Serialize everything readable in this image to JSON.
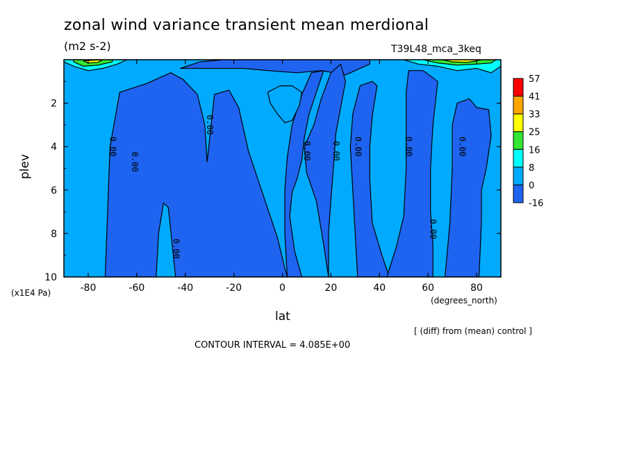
{
  "header": {
    "title": "zonal wind variance transient mean merdional",
    "units": "(m2 s-2)",
    "run": "T39L48_mca_3keq"
  },
  "footer": {
    "diff_note": "[ (diff) from (mean) control ]",
    "contour_interval": "CONTOUR INTERVAL = 4.085E+00"
  },
  "colors": {
    "dark_blue": "#1e64f0",
    "light_blue": "#00aaff",
    "cyan": "#00ffff",
    "green": "#32e632",
    "yellow": "#ffff00",
    "orange": "#ffa500",
    "red": "#ff0000"
  },
  "chart_data": {
    "type": "heatmap",
    "title": "zonal wind variance transient mean merdional",
    "subtitle": "(m2 s-2)",
    "xlabel": "lat",
    "xunits": "(degrees_north)",
    "ylabel": "plev",
    "yunits": "(x1E4 Pa)",
    "xlim": [
      -90,
      90
    ],
    "ylim": [
      10,
      0
    ],
    "x_ticks": [
      -80,
      -60,
      -40,
      -20,
      0,
      20,
      40,
      60,
      80
    ],
    "x_tick_labels": [
      "-80",
      "-60",
      "-40",
      "-20",
      "0",
      "20",
      "40",
      "60",
      "80"
    ],
    "y_ticks": [
      2,
      4,
      6,
      8,
      10
    ],
    "y_tick_labels": [
      "2",
      "4",
      "6",
      "8",
      "10"
    ],
    "colorbar": {
      "levels": [
        "57",
        "41",
        "33",
        "25",
        "16",
        "8",
        "0",
        "-16"
      ],
      "colors": [
        "#ff0000",
        "#ffa500",
        "#ffff00",
        "#32e632",
        "#00ffff",
        "#00aaff",
        "#1e64f0"
      ]
    },
    "contour_labels": [
      {
        "text": "0.00",
        "x": -70,
        "y": 4.0
      },
      {
        "text": "0.00",
        "x": -61,
        "y": 4.7
      },
      {
        "text": "0.00",
        "x": -44,
        "y": 8.7
      },
      {
        "text": "0.00",
        "x": -30,
        "y": 3.0
      },
      {
        "text": "0.00",
        "x": 10,
        "y": 4.2
      },
      {
        "text": "0.00",
        "x": 22,
        "y": 4.2
      },
      {
        "text": "0.00",
        "x": 31,
        "y": 4.0
      },
      {
        "text": "0.00",
        "x": 52,
        "y": 4.0
      },
      {
        "text": "0.00",
        "x": 62,
        "y": 7.8
      },
      {
        "text": "0.00",
        "x": 74,
        "y": 4.0
      }
    ],
    "regions": [
      {
        "name": "negative-sh-tower",
        "color": "#1e64f0",
        "points": [
          [
            -73,
            10
          ],
          [
            -71,
            4
          ],
          [
            -67,
            1.5
          ],
          [
            -56,
            1.1
          ],
          [
            -46,
            0.6
          ],
          [
            -41,
            0.9
          ],
          [
            -35,
            1.6
          ],
          [
            -32,
            3
          ],
          [
            -31,
            4.7
          ],
          [
            -28,
            1.6
          ],
          [
            -22,
            1.4
          ],
          [
            -18,
            2.2
          ],
          [
            -14,
            4.2
          ],
          [
            -8,
            6.2
          ],
          [
            -2,
            8.2
          ],
          [
            1,
            9.6
          ],
          [
            2,
            10
          ],
          [
            -16,
            10
          ],
          [
            -32,
            10
          ],
          [
            -40,
            10
          ],
          [
            -44,
            10
          ],
          [
            -47,
            6.8
          ],
          [
            -49,
            6.6
          ],
          [
            -51,
            8
          ],
          [
            -52,
            10
          ],
          [
            -60,
            10
          ],
          [
            -67,
            10
          ]
        ]
      },
      {
        "name": "negative-top-band",
        "color": "#1e64f0",
        "points": [
          [
            -42,
            0.4
          ],
          [
            -34,
            0.1
          ],
          [
            -24,
            0
          ],
          [
            -8,
            0
          ],
          [
            8,
            0
          ],
          [
            24,
            0
          ],
          [
            36,
            0
          ],
          [
            36,
            0.2
          ],
          [
            26,
            0.7
          ],
          [
            16,
            0.5
          ],
          [
            6,
            0.6
          ],
          [
            -6,
            0.5
          ],
          [
            -16,
            0.4
          ],
          [
            -30,
            0.4
          ]
        ]
      },
      {
        "name": "negative-midlat-nh",
        "color": "#1e64f0",
        "points": [
          [
            19,
            10
          ],
          [
            17,
            8.5
          ],
          [
            14,
            6.5
          ],
          [
            10,
            5.2
          ],
          [
            9,
            4
          ],
          [
            13,
            3
          ],
          [
            16,
            1.8
          ],
          [
            20,
            0.6
          ],
          [
            24,
            0.2
          ],
          [
            26,
            1
          ],
          [
            24,
            2.2
          ],
          [
            22,
            3.4
          ],
          [
            21,
            5
          ],
          [
            20,
            6.4
          ],
          [
            19,
            8
          ]
        ]
      },
      {
        "name": "negative-center",
        "color": "#1e64f0",
        "points": [
          [
            8,
            10
          ],
          [
            5,
            8.8
          ],
          [
            3,
            7.2
          ],
          [
            4,
            6.1
          ],
          [
            6,
            5.5
          ],
          [
            8,
            4.6
          ],
          [
            9,
            3.6
          ],
          [
            11,
            2.5
          ],
          [
            14,
            1.5
          ],
          [
            17,
            0.5
          ],
          [
            12,
            0.6
          ],
          [
            8,
            1.6
          ],
          [
            4,
            3
          ],
          [
            2,
            4.5
          ],
          [
            1,
            6
          ],
          [
            1,
            8
          ],
          [
            2,
            10
          ]
        ]
      },
      {
        "name": "negative-nh-column",
        "color": "#1e64f0",
        "points": [
          [
            31,
            10
          ],
          [
            30,
            8
          ],
          [
            29,
            6
          ],
          [
            28,
            4
          ],
          [
            29,
            2.5
          ],
          [
            32,
            1.2
          ],
          [
            37,
            1
          ],
          [
            39,
            1.2
          ],
          [
            37,
            2.6
          ],
          [
            36,
            4
          ],
          [
            36,
            5.5
          ],
          [
            37,
            7.5
          ],
          [
            41,
            9
          ],
          [
            44,
            10
          ]
        ]
      },
      {
        "name": "negative-60n-column",
        "color": "#1e64f0",
        "points": [
          [
            43,
            10
          ],
          [
            47,
            8.6
          ],
          [
            50,
            7.2
          ],
          [
            51,
            5
          ],
          [
            51,
            3
          ],
          [
            51,
            1.5
          ],
          [
            52,
            0.5
          ],
          [
            58,
            0.5
          ],
          [
            64,
            1
          ],
          [
            62,
            3
          ],
          [
            61,
            5
          ],
          [
            61,
            7
          ],
          [
            62,
            8.5
          ],
          [
            62,
            10
          ]
        ]
      },
      {
        "name": "negative-80n-column",
        "color": "#1e64f0",
        "points": [
          [
            67,
            10
          ],
          [
            69,
            7.5
          ],
          [
            70,
            5
          ],
          [
            70,
            3
          ],
          [
            72,
            2
          ],
          [
            77,
            1.8
          ],
          [
            80,
            2.2
          ],
          [
            85,
            2.3
          ],
          [
            86,
            3.5
          ],
          [
            84,
            5
          ],
          [
            82,
            6
          ],
          [
            82,
            7.5
          ],
          [
            81,
            10
          ]
        ]
      },
      {
        "name": "tropical-inner-contour",
        "color": "#00aaff",
        "points": [
          [
            -6,
            1.5
          ],
          [
            -1,
            1.2
          ],
          [
            4,
            1.2
          ],
          [
            8,
            1.5
          ],
          [
            7,
            2.1
          ],
          [
            4,
            2.8
          ],
          [
            1,
            2.9
          ],
          [
            -2,
            2.5
          ],
          [
            -5,
            2
          ]
        ]
      },
      {
        "name": "sh-polar-jet-cyan",
        "color": "#00ffff",
        "points": [
          [
            -90,
            0.1
          ],
          [
            -86,
            0.3
          ],
          [
            -80,
            0.5
          ],
          [
            -74,
            0.4
          ],
          [
            -68,
            0.2
          ],
          [
            -64,
            0
          ],
          [
            -90,
            0
          ]
        ]
      },
      {
        "name": "sh-polar-jet-green",
        "color": "#32e632",
        "points": [
          [
            -86,
            0.1
          ],
          [
            -82,
            0.3
          ],
          [
            -76,
            0.25
          ],
          [
            -70,
            0.1
          ],
          [
            -70,
            0
          ],
          [
            -86,
            0
          ]
        ]
      },
      {
        "name": "sh-polar-jet-yellow",
        "color": "#ffff00",
        "points": [
          [
            -82,
            0.05
          ],
          [
            -80,
            0.15
          ],
          [
            -76,
            0.12
          ],
          [
            -74,
            0
          ]
        ]
      },
      {
        "name": "nh-polar-jet-cyan",
        "color": "#00ffff",
        "points": [
          [
            50,
            0
          ],
          [
            56,
            0.2
          ],
          [
            64,
            0.3
          ],
          [
            72,
            0.5
          ],
          [
            80,
            0.4
          ],
          [
            86,
            0.6
          ],
          [
            90,
            0.3
          ],
          [
            90,
            0
          ]
        ]
      },
      {
        "name": "nh-polar-jet-green",
        "color": "#32e632",
        "points": [
          [
            58,
            0
          ],
          [
            64,
            0.15
          ],
          [
            72,
            0.25
          ],
          [
            80,
            0.2
          ],
          [
            86,
            0.15
          ],
          [
            88,
            0
          ]
        ]
      },
      {
        "name": "nh-polar-jet-yellow",
        "color": "#ffff00",
        "points": [
          [
            66,
            0
          ],
          [
            70,
            0.1
          ],
          [
            76,
            0.12
          ],
          [
            80,
            0.05
          ],
          [
            82,
            0
          ]
        ]
      }
    ]
  }
}
